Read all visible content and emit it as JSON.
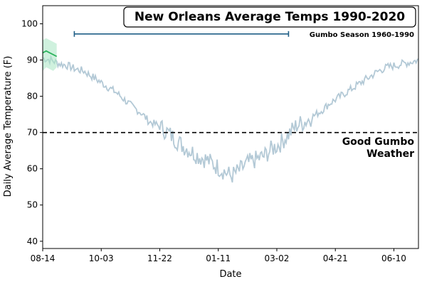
{
  "chart_data": {
    "type": "line",
    "title": "New Orleans Average Temps 1990-2020",
    "xlabel": "Date",
    "ylabel": "Daily Average Temperature (F)",
    "ylim": [
      38,
      105
    ],
    "yticks": [
      40,
      50,
      60,
      70,
      80,
      90,
      100
    ],
    "xlim": [
      "08-14",
      "07-01"
    ],
    "xticks": [
      "08-14",
      "10-03",
      "11-22",
      "01-11",
      "03-02",
      "04-21",
      "06-10"
    ],
    "grid": false,
    "colors": {
      "series_line": "#b3c9d6",
      "highlight_line": "#2db35d",
      "highlight_band": "#a8e6c2",
      "range_bar": "#1f5e86",
      "threshold": "#000000"
    },
    "series": [
      {
        "x": [
          "08-14",
          "08-21",
          "08-28",
          "09-04",
          "09-11",
          "09-18",
          "09-25",
          "10-02",
          "10-09",
          "10-16",
          "10-23",
          "10-30",
          "11-06",
          "11-13",
          "11-20",
          "11-27",
          "12-04",
          "12-11",
          "12-18",
          "12-25",
          "01-01",
          "01-08",
          "01-15",
          "01-22",
          "01-29",
          "02-05",
          "02-12",
          "02-19",
          "02-26",
          "03-05",
          "03-12",
          "03-19",
          "03-26",
          "04-02",
          "04-09",
          "04-16",
          "04-23",
          "04-30",
          "05-07",
          "05-14",
          "05-21",
          "05-28",
          "06-04",
          "06-11",
          "06-18",
          "06-25",
          "07-01"
        ],
        "values": [
          90.5,
          90,
          89,
          88.5,
          87.5,
          87,
          85.5,
          84,
          82.5,
          81,
          79,
          77,
          75.5,
          73,
          72,
          70.5,
          68.5,
          66.5,
          65,
          63.5,
          62.5,
          61,
          59.5,
          58,
          59.5,
          61.5,
          62.5,
          63.5,
          65.5,
          67,
          69.5,
          72,
          73,
          74.5,
          76,
          78,
          79.5,
          81,
          82.5,
          84,
          85.5,
          87,
          88,
          88.5,
          89,
          89.5,
          90
        ]
      }
    ],
    "highlight": {
      "x": [
        "08-14",
        "08-17",
        "08-20",
        "08-23",
        "08-26"
      ],
      "values": [
        92,
        92.5,
        92,
        91.5,
        91
      ],
      "band_low": [
        87,
        88,
        87.5,
        87,
        88
      ],
      "band_high": [
        95.5,
        96,
        95.5,
        95,
        94.5
      ]
    },
    "annotations": {
      "threshold": {
        "y": 70,
        "label": "Good Gumbo Weather",
        "label_lines": [
          "Good Gumbo",
          "Weather"
        ]
      },
      "range": {
        "label": "Gumbo Season 1960-1990",
        "start": "09-10",
        "end": "03-12",
        "y": 97.2
      }
    }
  }
}
